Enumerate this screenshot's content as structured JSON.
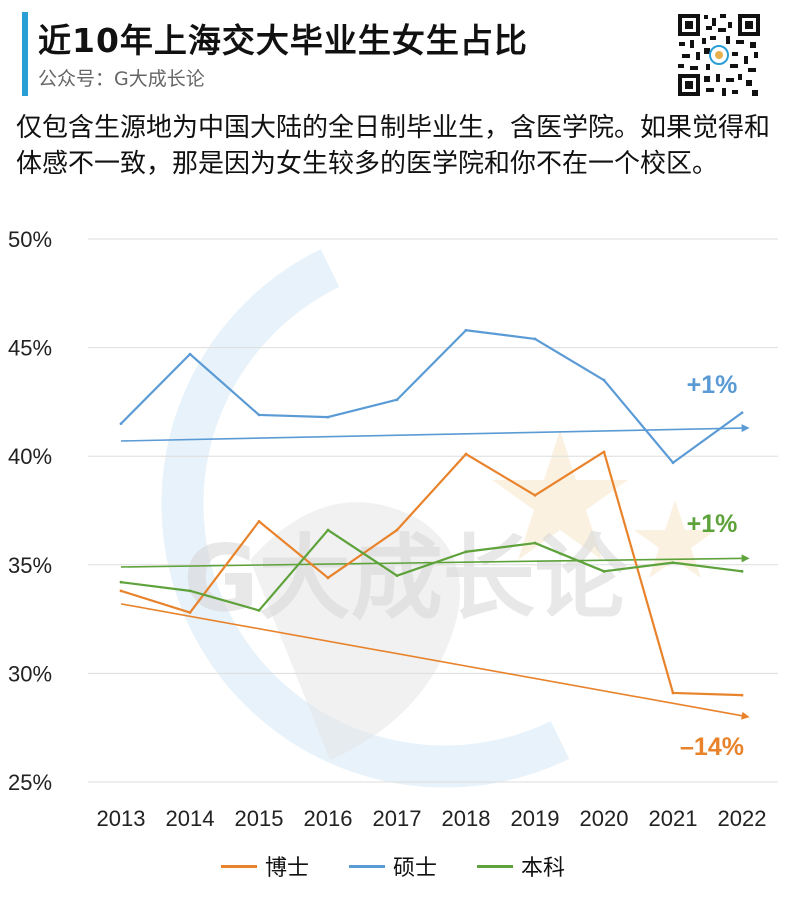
{
  "header": {
    "title": "近10年上海交大毕业生女生占比",
    "subtitle": "公众号：G大成长论"
  },
  "description": "仅包含生源地为中国大陆的全日制毕业生，含医学院。如果觉得和体感不一致，那是因为女生较多的医学院和你不在一个校区。",
  "watermark": {
    "text": "G大成长论"
  },
  "chart_data": {
    "type": "line",
    "x": [
      "2013",
      "2014",
      "2015",
      "2016",
      "2017",
      "2018",
      "2019",
      "2020",
      "2021",
      "2022"
    ],
    "yticks": [
      "50%",
      "45%",
      "40%",
      "35%",
      "30%",
      "25%"
    ],
    "ylim": [
      25,
      50
    ],
    "grid": true,
    "legend_position": "bottom",
    "series": [
      {
        "name": "博士",
        "color": "#e8832c",
        "values": [
          33.8,
          32.8,
          37.0,
          34.4,
          36.6,
          40.1,
          38.2,
          40.2,
          29.1,
          29.0
        ],
        "trend": {
          "start": 33.2,
          "end": 28.0,
          "label": "–14%"
        }
      },
      {
        "name": "硕士",
        "color": "#5b9bd5",
        "values": [
          41.5,
          44.7,
          41.9,
          41.8,
          42.6,
          45.8,
          45.4,
          43.5,
          39.7,
          42.0
        ],
        "trend": {
          "start": 40.7,
          "end": 41.3,
          "label": "+1%"
        }
      },
      {
        "name": "本科",
        "color": "#5ea23b",
        "values": [
          34.2,
          33.8,
          32.9,
          36.6,
          34.5,
          35.6,
          36.0,
          34.7,
          35.1,
          34.7
        ],
        "trend": {
          "start": 34.9,
          "end": 35.3,
          "label": "+1%"
        }
      }
    ]
  }
}
